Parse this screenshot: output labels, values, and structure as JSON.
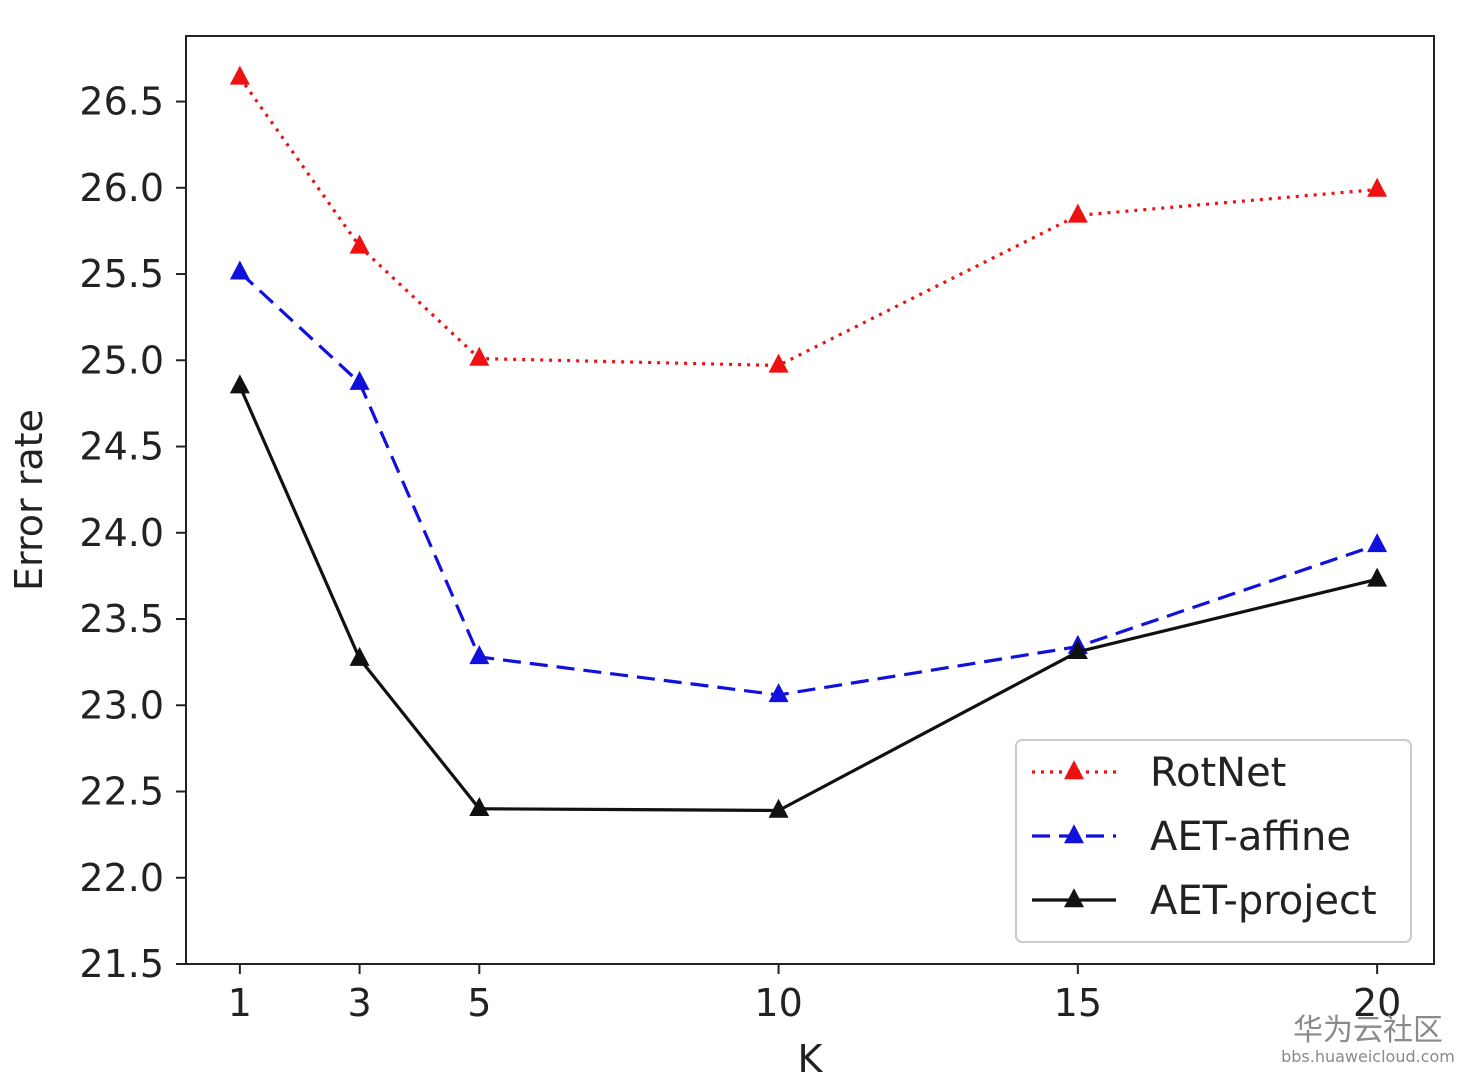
{
  "chart_data": {
    "type": "line",
    "title": "",
    "xlabel": "K",
    "ylabel": "Error rate",
    "x": [
      1,
      3,
      5,
      10,
      15,
      20
    ],
    "xticks": [
      "1",
      "3",
      "5",
      "10",
      "15",
      "20"
    ],
    "yticks": [
      "21.5",
      "22.0",
      "22.5",
      "23.0",
      "23.5",
      "24.0",
      "24.5",
      "25.0",
      "25.5",
      "26.0",
      "26.5"
    ],
    "ylim": [
      21.5,
      26.88
    ],
    "xlim": [
      0.1,
      20.95
    ],
    "grid": false,
    "legend_position": "lower-right",
    "series": [
      {
        "name": "RotNet",
        "color": "#ee1111",
        "style": "dotted",
        "marker": "triangle",
        "values": [
          26.64,
          25.66,
          25.01,
          24.97,
          25.84,
          25.99
        ]
      },
      {
        "name": "AET-affine",
        "color": "#1111dd",
        "style": "dashed",
        "marker": "triangle",
        "values": [
          25.51,
          24.87,
          23.28,
          23.06,
          23.34,
          23.93
        ]
      },
      {
        "name": "AET-project",
        "color": "#111111",
        "style": "solid",
        "marker": "triangle",
        "values": [
          24.85,
          23.27,
          22.4,
          22.39,
          23.31,
          23.73
        ]
      }
    ]
  },
  "watermark": {
    "text": "华为云社区",
    "url": "bbs.huaweicloud.com"
  }
}
